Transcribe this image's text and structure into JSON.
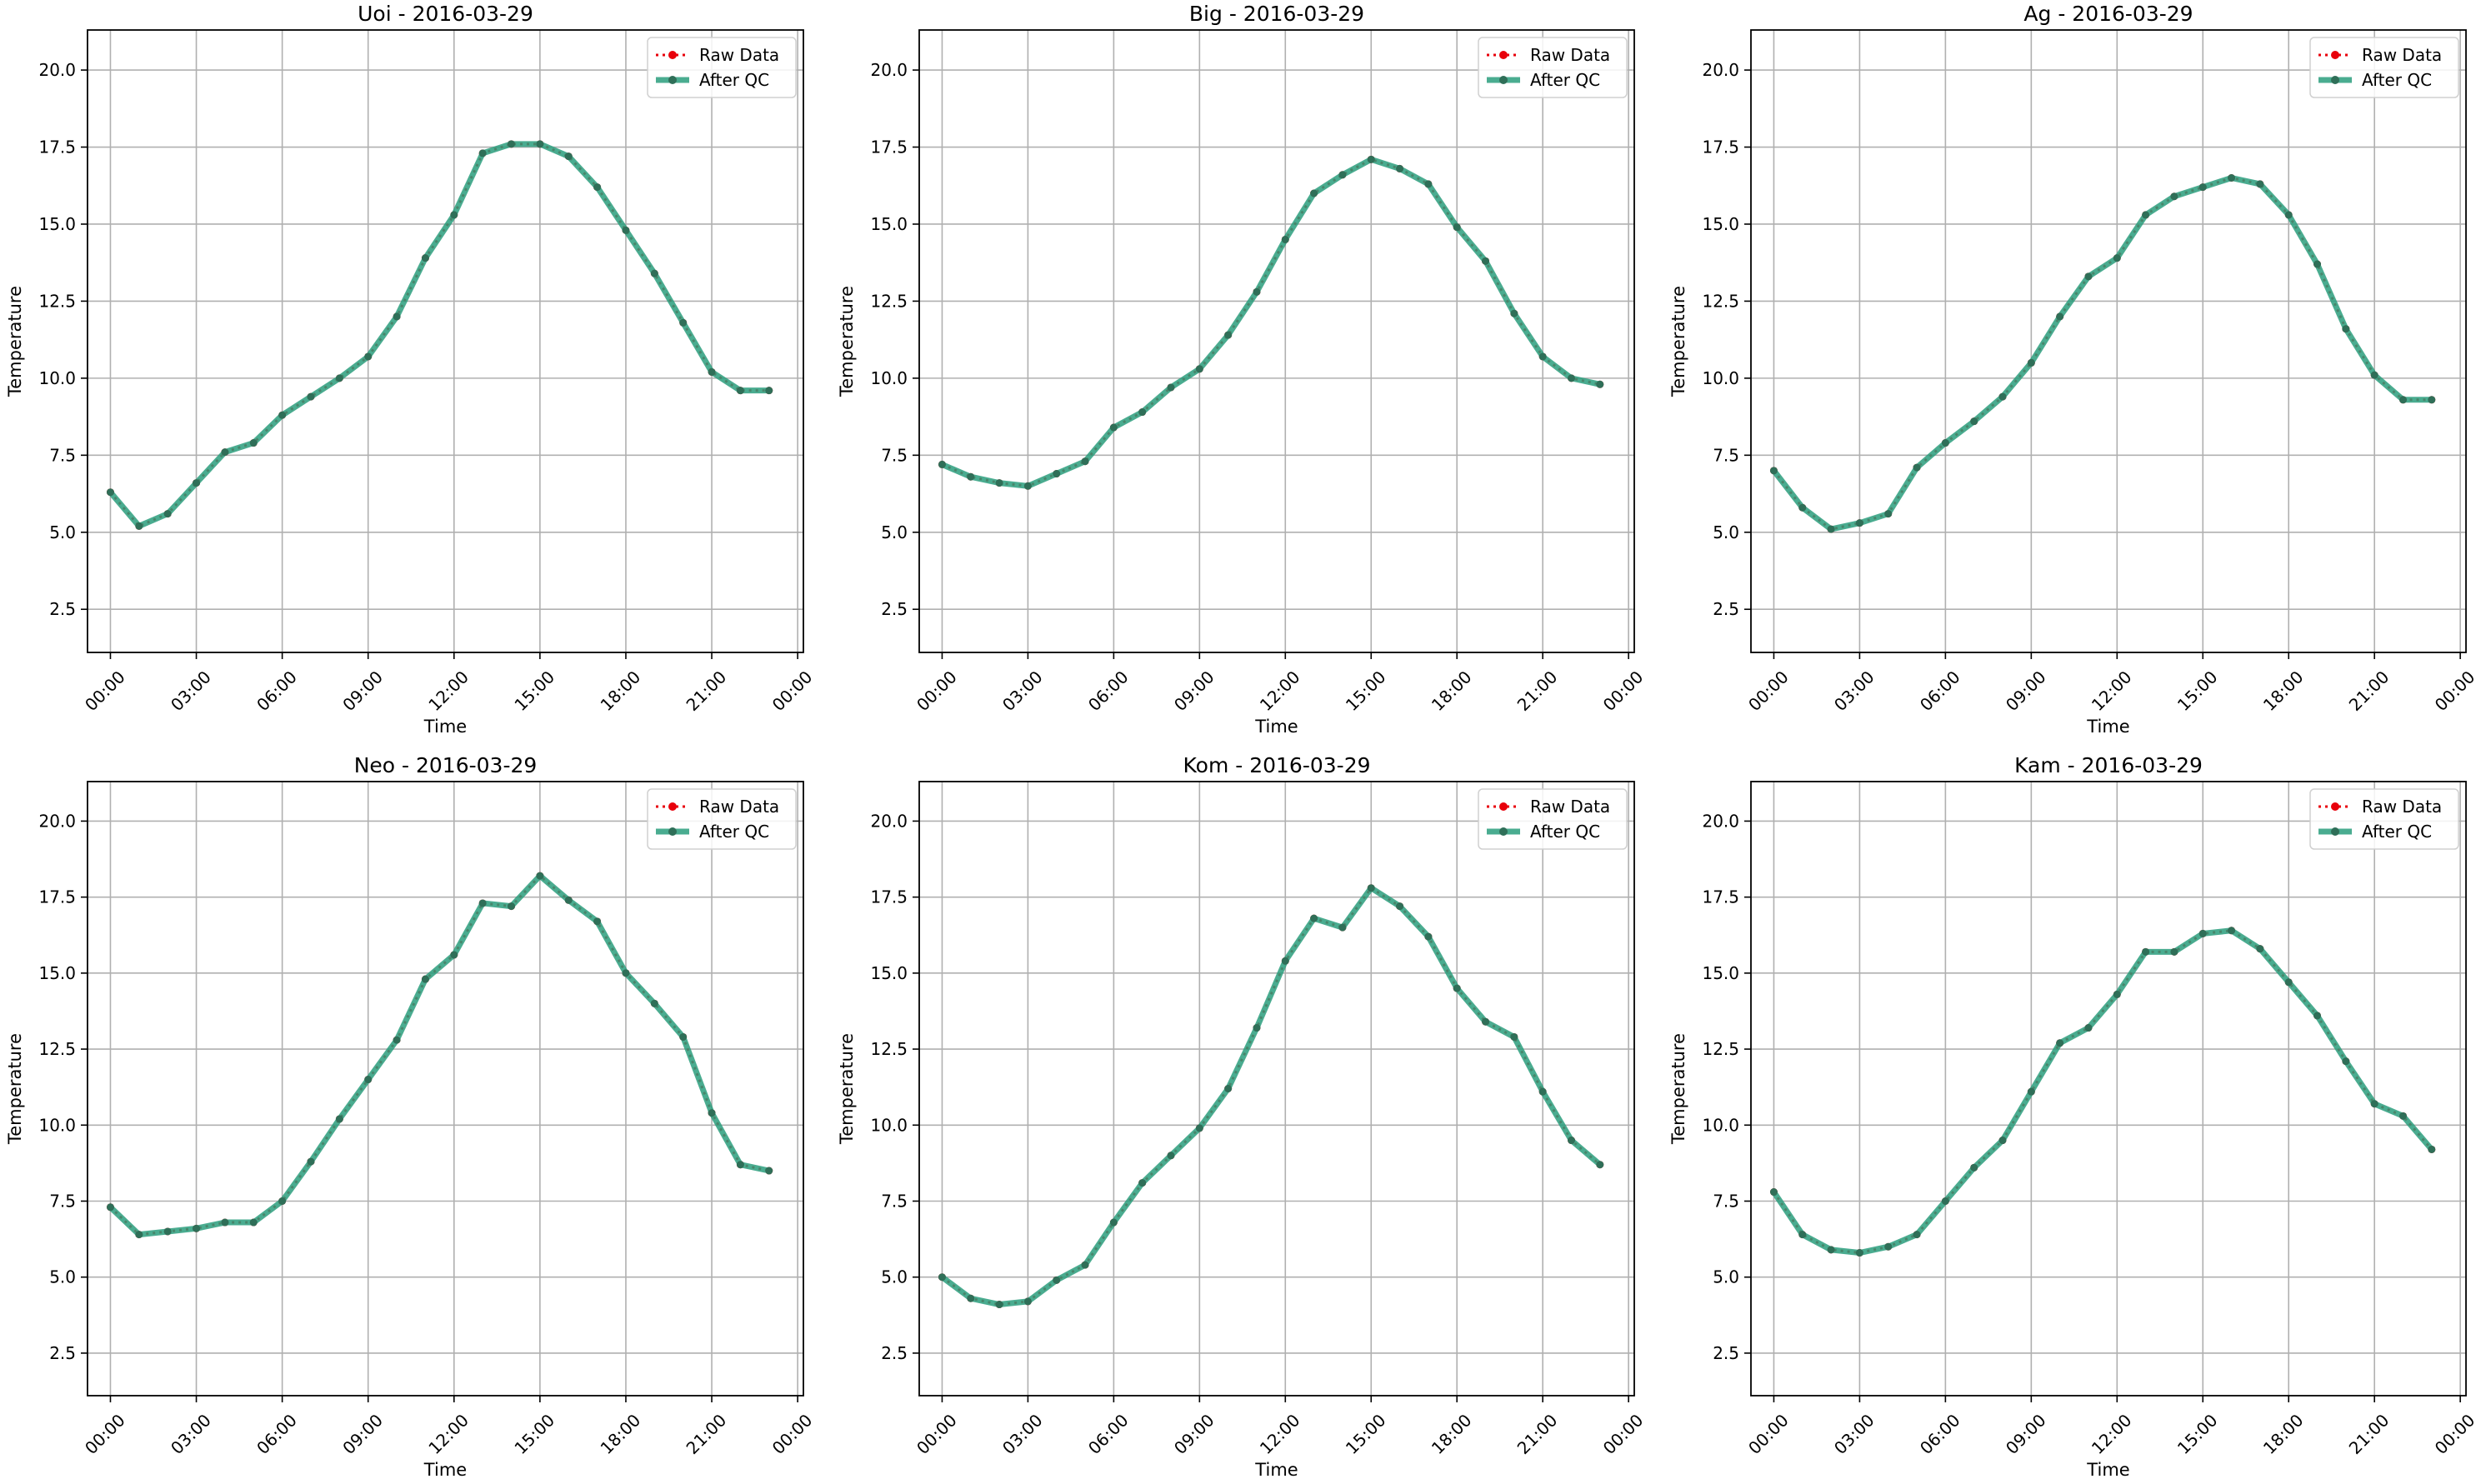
{
  "colors": {
    "raw": "#e8000b",
    "qc": "#2a9d7c",
    "grid": "#b0b0b0",
    "axes": "#000000",
    "legend_border": "#d0d0d0"
  },
  "chart_data": [
    {
      "type": "line",
      "title": "Uoi - 2016-03-29",
      "xlabel": "Time",
      "ylabel": "Temperature",
      "xlim": [
        -0.8,
        24.2
      ],
      "ylim": [
        1.1,
        21.3
      ],
      "x_ticks": [
        0,
        3,
        6,
        9,
        12,
        15,
        18,
        21,
        24
      ],
      "x_tick_labels": [
        "00:00",
        "03:00",
        "06:00",
        "09:00",
        "12:00",
        "15:00",
        "18:00",
        "21:00",
        "00:00"
      ],
      "y_ticks": [
        2.5,
        5.0,
        7.5,
        10.0,
        12.5,
        15.0,
        17.5,
        20.0
      ],
      "y_tick_labels": [
        "2.5",
        "5.0",
        "7.5",
        "10.0",
        "12.5",
        "15.0",
        "17.5",
        "20.0"
      ],
      "grid": true,
      "legend_position": "upper-right",
      "x": [
        0,
        1,
        2,
        3,
        4,
        5,
        6,
        7,
        8,
        9,
        10,
        11,
        12,
        13,
        14,
        15,
        16,
        17,
        18,
        19,
        20,
        21,
        22,
        23
      ],
      "series": [
        {
          "name": "Raw Data",
          "values": [
            6.3,
            5.2,
            5.6,
            6.6,
            7.6,
            7.9,
            8.8,
            9.4,
            10.0,
            10.7,
            12.0,
            13.9,
            15.3,
            17.3,
            17.6,
            17.6,
            17.2,
            16.2,
            14.8,
            13.4,
            11.8,
            10.2,
            9.6,
            9.6
          ]
        },
        {
          "name": "After QC",
          "values": [
            6.3,
            5.2,
            5.6,
            6.6,
            7.6,
            7.9,
            8.8,
            9.4,
            10.0,
            10.7,
            12.0,
            13.9,
            15.3,
            17.3,
            17.6,
            17.6,
            17.2,
            16.2,
            14.8,
            13.4,
            11.8,
            10.2,
            9.6,
            9.6
          ]
        }
      ]
    },
    {
      "type": "line",
      "title": "Big - 2016-03-29",
      "xlabel": "Time",
      "ylabel": "Temperature",
      "xlim": [
        -0.8,
        24.2
      ],
      "ylim": [
        1.1,
        21.3
      ],
      "x_ticks": [
        0,
        3,
        6,
        9,
        12,
        15,
        18,
        21,
        24
      ],
      "x_tick_labels": [
        "00:00",
        "03:00",
        "06:00",
        "09:00",
        "12:00",
        "15:00",
        "18:00",
        "21:00",
        "00:00"
      ],
      "y_ticks": [
        2.5,
        5.0,
        7.5,
        10.0,
        12.5,
        15.0,
        17.5,
        20.0
      ],
      "y_tick_labels": [
        "2.5",
        "5.0",
        "7.5",
        "10.0",
        "12.5",
        "15.0",
        "17.5",
        "20.0"
      ],
      "grid": true,
      "legend_position": "upper-right",
      "x": [
        0,
        1,
        2,
        3,
        4,
        5,
        6,
        7,
        8,
        9,
        10,
        11,
        12,
        13,
        14,
        15,
        16,
        17,
        18,
        19,
        20,
        21,
        22,
        23
      ],
      "series": [
        {
          "name": "Raw Data",
          "values": [
            7.2,
            6.8,
            6.6,
            6.5,
            6.9,
            7.3,
            8.4,
            8.9,
            9.7,
            10.3,
            11.4,
            12.8,
            14.5,
            16.0,
            16.6,
            17.1,
            16.8,
            16.3,
            14.9,
            13.8,
            12.1,
            10.7,
            10.0,
            9.8
          ]
        },
        {
          "name": "After QC",
          "values": [
            7.2,
            6.8,
            6.6,
            6.5,
            6.9,
            7.3,
            8.4,
            8.9,
            9.7,
            10.3,
            11.4,
            12.8,
            14.5,
            16.0,
            16.6,
            17.1,
            16.8,
            16.3,
            14.9,
            13.8,
            12.1,
            10.7,
            10.0,
            9.8
          ]
        }
      ]
    },
    {
      "type": "line",
      "title": "Ag - 2016-03-29",
      "xlabel": "Time",
      "ylabel": "Temperature",
      "xlim": [
        -0.8,
        24.2
      ],
      "ylim": [
        1.1,
        21.3
      ],
      "x_ticks": [
        0,
        3,
        6,
        9,
        12,
        15,
        18,
        21,
        24
      ],
      "x_tick_labels": [
        "00:00",
        "03:00",
        "06:00",
        "09:00",
        "12:00",
        "15:00",
        "18:00",
        "21:00",
        "00:00"
      ],
      "y_ticks": [
        2.5,
        5.0,
        7.5,
        10.0,
        12.5,
        15.0,
        17.5,
        20.0
      ],
      "y_tick_labels": [
        "2.5",
        "5.0",
        "7.5",
        "10.0",
        "12.5",
        "15.0",
        "17.5",
        "20.0"
      ],
      "grid": true,
      "legend_position": "upper-right",
      "x": [
        0,
        1,
        2,
        3,
        4,
        5,
        6,
        7,
        8,
        9,
        10,
        11,
        12,
        13,
        14,
        15,
        16,
        17,
        18,
        19,
        20,
        21,
        22,
        23
      ],
      "series": [
        {
          "name": "Raw Data",
          "values": [
            7.0,
            5.8,
            5.1,
            5.3,
            5.6,
            7.1,
            7.9,
            8.6,
            9.4,
            10.5,
            12.0,
            13.3,
            13.9,
            15.3,
            15.9,
            16.2,
            16.5,
            16.3,
            15.3,
            13.7,
            11.6,
            10.1,
            9.3,
            9.3
          ]
        },
        {
          "name": "After QC",
          "values": [
            7.0,
            5.8,
            5.1,
            5.3,
            5.6,
            7.1,
            7.9,
            8.6,
            9.4,
            10.5,
            12.0,
            13.3,
            13.9,
            15.3,
            15.9,
            16.2,
            16.5,
            16.3,
            15.3,
            13.7,
            11.6,
            10.1,
            9.3,
            9.3
          ]
        }
      ]
    },
    {
      "type": "line",
      "title": "Neo - 2016-03-29",
      "xlabel": "Time",
      "ylabel": "Temperature",
      "xlim": [
        -0.8,
        24.2
      ],
      "ylim": [
        1.1,
        21.3
      ],
      "x_ticks": [
        0,
        3,
        6,
        9,
        12,
        15,
        18,
        21,
        24
      ],
      "x_tick_labels": [
        "00:00",
        "03:00",
        "06:00",
        "09:00",
        "12:00",
        "15:00",
        "18:00",
        "21:00",
        "00:00"
      ],
      "y_ticks": [
        2.5,
        5.0,
        7.5,
        10.0,
        12.5,
        15.0,
        17.5,
        20.0
      ],
      "y_tick_labels": [
        "2.5",
        "5.0",
        "7.5",
        "10.0",
        "12.5",
        "15.0",
        "17.5",
        "20.0"
      ],
      "grid": true,
      "legend_position": "upper-right",
      "x": [
        0,
        1,
        2,
        3,
        4,
        5,
        6,
        7,
        8,
        9,
        10,
        11,
        12,
        13,
        14,
        15,
        16,
        17,
        18,
        19,
        20,
        21,
        22,
        23
      ],
      "series": [
        {
          "name": "Raw Data",
          "values": [
            7.3,
            6.4,
            6.5,
            6.6,
            6.8,
            6.8,
            7.5,
            8.8,
            10.2,
            11.5,
            12.8,
            14.8,
            15.6,
            17.3,
            17.2,
            18.2,
            17.4,
            16.7,
            15.0,
            14.0,
            12.9,
            10.4,
            8.7,
            8.5
          ]
        },
        {
          "name": "After QC",
          "values": [
            7.3,
            6.4,
            6.5,
            6.6,
            6.8,
            6.8,
            7.5,
            8.8,
            10.2,
            11.5,
            12.8,
            14.8,
            15.6,
            17.3,
            17.2,
            18.2,
            17.4,
            16.7,
            15.0,
            14.0,
            12.9,
            10.4,
            8.7,
            8.5
          ]
        }
      ]
    },
    {
      "type": "line",
      "title": "Kom - 2016-03-29",
      "xlabel": "Time",
      "ylabel": "Temperature",
      "xlim": [
        -0.8,
        24.2
      ],
      "ylim": [
        1.1,
        21.3
      ],
      "x_ticks": [
        0,
        3,
        6,
        9,
        12,
        15,
        18,
        21,
        24
      ],
      "x_tick_labels": [
        "00:00",
        "03:00",
        "06:00",
        "09:00",
        "12:00",
        "15:00",
        "18:00",
        "21:00",
        "00:00"
      ],
      "y_ticks": [
        2.5,
        5.0,
        7.5,
        10.0,
        12.5,
        15.0,
        17.5,
        20.0
      ],
      "y_tick_labels": [
        "2.5",
        "5.0",
        "7.5",
        "10.0",
        "12.5",
        "15.0",
        "17.5",
        "20.0"
      ],
      "grid": true,
      "legend_position": "upper-right",
      "x": [
        0,
        1,
        2,
        3,
        4,
        5,
        6,
        7,
        8,
        9,
        10,
        11,
        12,
        13,
        14,
        15,
        16,
        17,
        18,
        19,
        20,
        21,
        22,
        23
      ],
      "series": [
        {
          "name": "Raw Data",
          "values": [
            5.0,
            4.3,
            4.1,
            4.2,
            4.9,
            5.4,
            6.8,
            8.1,
            9.0,
            9.9,
            11.2,
            13.2,
            15.4,
            16.8,
            16.5,
            17.8,
            17.2,
            16.2,
            14.5,
            13.4,
            12.9,
            11.1,
            9.5,
            8.7
          ]
        },
        {
          "name": "After QC",
          "values": [
            5.0,
            4.3,
            4.1,
            4.2,
            4.9,
            5.4,
            6.8,
            8.1,
            9.0,
            9.9,
            11.2,
            13.2,
            15.4,
            16.8,
            16.5,
            17.8,
            17.2,
            16.2,
            14.5,
            13.4,
            12.9,
            11.1,
            9.5,
            8.7
          ]
        }
      ]
    },
    {
      "type": "line",
      "title": "Kam - 2016-03-29",
      "xlabel": "Time",
      "ylabel": "Temperature",
      "xlim": [
        -0.8,
        24.2
      ],
      "ylim": [
        1.1,
        21.3
      ],
      "x_ticks": [
        0,
        3,
        6,
        9,
        12,
        15,
        18,
        21,
        24
      ],
      "x_tick_labels": [
        "00:00",
        "03:00",
        "06:00",
        "09:00",
        "12:00",
        "15:00",
        "18:00",
        "21:00",
        "00:00"
      ],
      "y_ticks": [
        2.5,
        5.0,
        7.5,
        10.0,
        12.5,
        15.0,
        17.5,
        20.0
      ],
      "y_tick_labels": [
        "2.5",
        "5.0",
        "7.5",
        "10.0",
        "12.5",
        "15.0",
        "17.5",
        "20.0"
      ],
      "grid": true,
      "legend_position": "upper-right",
      "x": [
        0,
        1,
        2,
        3,
        4,
        5,
        6,
        7,
        8,
        9,
        10,
        11,
        12,
        13,
        14,
        15,
        16,
        17,
        18,
        19,
        20,
        21,
        22,
        23
      ],
      "series": [
        {
          "name": "Raw Data",
          "values": [
            7.8,
            6.4,
            5.9,
            5.8,
            6.0,
            6.4,
            7.5,
            8.6,
            9.5,
            11.1,
            12.7,
            13.2,
            14.3,
            15.7,
            15.7,
            16.3,
            16.4,
            15.8,
            14.7,
            13.6,
            12.1,
            10.7,
            10.3,
            9.2
          ]
        },
        {
          "name": "After QC",
          "values": [
            7.8,
            6.4,
            5.9,
            5.8,
            6.0,
            6.4,
            7.5,
            8.6,
            9.5,
            11.1,
            12.7,
            13.2,
            14.3,
            15.7,
            15.7,
            16.3,
            16.4,
            15.8,
            14.7,
            13.6,
            12.1,
            10.7,
            10.3,
            9.2
          ]
        }
      ]
    }
  ]
}
